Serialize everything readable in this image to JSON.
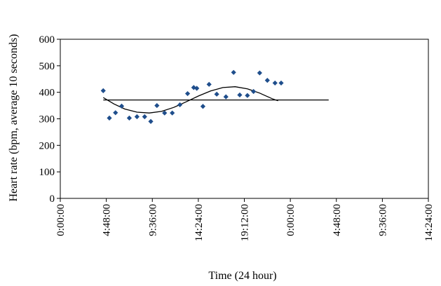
{
  "chart_data": {
    "type": "scatter",
    "title": "",
    "xlabel": "Time (24 hour)",
    "ylabel": "Heart rate (bpm, average 10 seconds)",
    "xlim": [
      0,
      2.4
    ],
    "ylim": [
      0,
      600
    ],
    "y_ticks": [
      0,
      100,
      200,
      300,
      400,
      500,
      600
    ],
    "x_tick_labels": [
      "0:00:00",
      "4:48:00",
      "9:36:00",
      "14:24:00",
      "19:12:00",
      "0:00:00",
      "4:48:00",
      "9:36:00",
      "14:24:00"
    ],
    "grid": false,
    "legend": "none",
    "colors": {
      "points": "#1f4e8c",
      "lines": "#000000",
      "axes": "#000000"
    },
    "series": [
      {
        "type": "scatter",
        "x": [
          0.28,
          0.32,
          0.36,
          0.4,
          0.45,
          0.5,
          0.55,
          0.59,
          0.63,
          0.68,
          0.73,
          0.78,
          0.83,
          0.87,
          0.89,
          0.93,
          0.97,
          1.02,
          1.08,
          1.13,
          1.17,
          1.22,
          1.26,
          1.3,
          1.35,
          1.4,
          1.44
        ],
        "y": [
          406,
          303,
          323,
          348,
          303,
          308,
          308,
          290,
          350,
          322,
          322,
          353,
          395,
          418,
          415,
          347,
          430,
          393,
          383,
          475,
          390,
          388,
          403,
          473,
          445,
          435,
          435
        ]
      },
      {
        "type": "line",
        "x": [
          0.28,
          1.75
        ],
        "y": [
          371,
          371
        ]
      },
      {
        "type": "line",
        "x": [
          0.28,
          0.35,
          0.42,
          0.5,
          0.58,
          0.66,
          0.74,
          0.82,
          0.9,
          0.98,
          1.06,
          1.14,
          1.22,
          1.3,
          1.38,
          1.42
        ],
        "y": [
          380,
          356,
          337,
          325,
          322,
          328,
          343,
          364,
          386,
          405,
          418,
          421,
          413,
          397,
          376,
          368
        ]
      }
    ]
  }
}
